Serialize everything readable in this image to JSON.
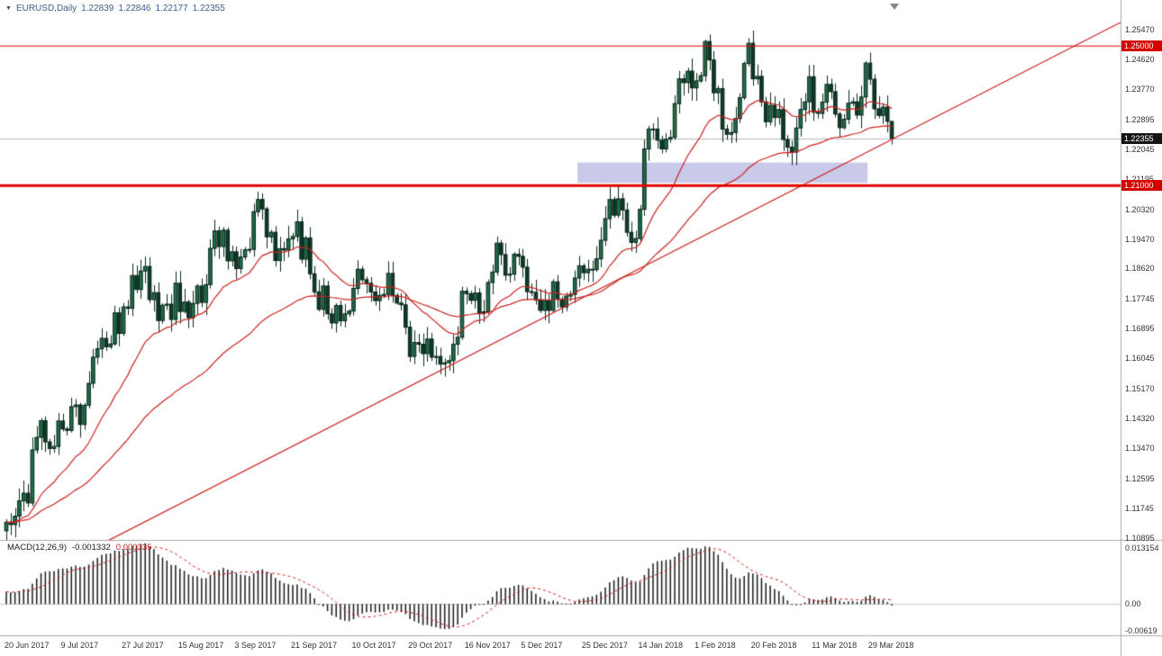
{
  "header": {
    "symbol_period": "EURUSD,Daily",
    "open": "1.22839",
    "high": "1.22846",
    "low": "1.22177",
    "close": "1.22355"
  },
  "macd_panel": {
    "label": "MACD(12,26,9)",
    "value_main": "-0.001332",
    "value_signal": "0.000335"
  },
  "colors": {
    "candle_up": "#1d6f49",
    "candle_down": "#0d3c2a",
    "candle_border": "#062015",
    "wick": "#0a2a1e",
    "line_red": "#cc2222",
    "level_red": "#e00000",
    "histogram": "#1a1a1a",
    "bid_line": "#b8b8b8",
    "highlight": "#c9c9ea",
    "separator": "#aaaaaa"
  },
  "chart_data": {
    "type": "candlestick",
    "title": "EURUSD Daily with MACD(12,26,9)",
    "symbol": "EURUSD",
    "timeframe": "Daily",
    "legend_position": "none",
    "grid": "off",
    "price_axis": {
      "max": 1.2632,
      "min": 1.1084,
      "ticks": [
        {
          "label": "1.25470",
          "value": 1.2547
        },
        {
          "label": "1.24620",
          "value": 1.2462
        },
        {
          "label": "1.23770",
          "value": 1.2377
        },
        {
          "label": "1.22895",
          "value": 1.22895
        },
        {
          "label": "1.22045",
          "value": 1.22045
        },
        {
          "label": "1.21195",
          "value": 1.21195
        },
        {
          "label": "1.20320",
          "value": 1.2032
        },
        {
          "label": "1.19470",
          "value": 1.1947
        },
        {
          "label": "1.18620",
          "value": 1.1862
        },
        {
          "label": "1.17745",
          "value": 1.17745
        },
        {
          "label": "1.16895",
          "value": 1.16895
        },
        {
          "label": "1.16045",
          "value": 1.16045
        },
        {
          "label": "1.15170",
          "value": 1.1517
        },
        {
          "label": "1.14320",
          "value": 1.1432
        },
        {
          "label": "1.13470",
          "value": 1.1347
        },
        {
          "label": "1.12595",
          "value": 1.12595
        },
        {
          "label": "1.11745",
          "value": 1.11745
        },
        {
          "label": "1.10895",
          "value": 1.10895
        }
      ]
    },
    "macd_axis": {
      "max": 0.0148,
      "min": -0.0073,
      "ticks": [
        {
          "label": "0.013154",
          "value": 0.013154
        },
        {
          "label": "0.00",
          "value": 0
        },
        {
          "label": "-0.00619",
          "value": -0.00619
        }
      ]
    },
    "x_labels": [
      {
        "index": 0,
        "label": "20 Jun 2017"
      },
      {
        "index": 13,
        "label": "9 Jul 2017"
      },
      {
        "index": 27,
        "label": "27 Jul 2017"
      },
      {
        "index": 40,
        "label": "15 Aug 2017"
      },
      {
        "index": 53,
        "label": "3 Sep 2017"
      },
      {
        "index": 66,
        "label": "21 Sep 2017"
      },
      {
        "index": 80,
        "label": "10 Oct 2017"
      },
      {
        "index": 93,
        "label": "29 Oct 2017"
      },
      {
        "index": 106,
        "label": "16 Nov 2017"
      },
      {
        "index": 119,
        "label": "5 Dec 2017"
      },
      {
        "index": 133,
        "label": "25 Dec 2017"
      },
      {
        "index": 146,
        "label": "14 Jan 2018"
      },
      {
        "index": 159,
        "label": "1 Feb 2018"
      },
      {
        "index": 172,
        "label": "20 Feb 2018"
      },
      {
        "index": 186,
        "label": "11 Mar 2018"
      },
      {
        "index": 199,
        "label": "29 Mar 2018"
      }
    ],
    "closes": [
      1.1135,
      1.1128,
      1.1152,
      1.1196,
      1.1218,
      1.119,
      1.1342,
      1.1378,
      1.1426,
      1.1365,
      1.1346,
      1.1352,
      1.1425,
      1.1402,
      1.1398,
      1.1466,
      1.1471,
      1.1415,
      1.147,
      1.1533,
      1.1608,
      1.1632,
      1.1662,
      1.1638,
      1.1646,
      1.1735,
      1.1676,
      1.1752,
      1.1748,
      1.1842,
      1.1802,
      1.1855,
      1.1868,
      1.1773,
      1.1793,
      1.1713,
      1.1757,
      1.176,
      1.1716,
      1.182,
      1.1739,
      1.1766,
      1.1721,
      1.1762,
      1.1812,
      1.1765,
      1.1816,
      1.192,
      1.197,
      1.1925,
      1.1972,
      1.1884,
      1.191,
      1.1862,
      1.1895,
      1.1916,
      1.1917,
      1.2025,
      1.206,
      1.2033,
      1.1953,
      1.1966,
      1.1885,
      1.1919,
      1.1915,
      1.1947,
      1.1954,
      1.1996,
      1.1889,
      1.195,
      1.1847,
      1.1795,
      1.1745,
      1.1812,
      1.1732,
      1.1706,
      1.1756,
      1.1712,
      1.1732,
      1.174,
      1.1805,
      1.186,
      1.183,
      1.182,
      1.1795,
      1.177,
      1.1785,
      1.1788,
      1.1848,
      1.1785,
      1.1763,
      1.1758,
      1.1694,
      1.161,
      1.165,
      1.1645,
      1.1618,
      1.166,
      1.1608,
      1.161,
      1.1588,
      1.1592,
      1.1598,
      1.1645,
      1.1665,
      1.1797,
      1.179,
      1.1771,
      1.1792,
      1.1735,
      1.1738,
      1.1822,
      1.1852,
      1.1935,
      1.1902,
      1.1843,
      1.1846,
      1.1903,
      1.1897,
      1.1866,
      1.1796,
      1.1794,
      1.1772,
      1.1742,
      1.177,
      1.1742,
      1.1824,
      1.1774,
      1.1752,
      1.1783,
      1.1788,
      1.1835,
      1.187,
      1.185,
      1.186,
      1.1859,
      1.189,
      1.1943,
      1.2005,
      1.206,
      1.2015,
      1.2062,
      1.203,
      1.1966,
      1.1937,
      1.1948,
      1.2032,
      1.2205,
      1.2262,
      1.2262,
      1.223,
      1.2205,
      1.2233,
      1.2238,
      1.2335,
      1.2406,
      1.2395,
      1.2428,
      1.238,
      1.24,
      1.2415,
      1.2513,
      1.246,
      1.2366,
      1.2378,
      1.2262,
      1.2247,
      1.2252,
      1.2292,
      1.2352,
      1.245,
      1.2508,
      1.2406,
      1.2413,
      1.234,
      1.2283,
      1.233,
      1.2295,
      1.2318,
      1.2232,
      1.221,
      1.2196,
      1.2265,
      1.2318,
      1.234,
      1.2412,
      1.231,
      1.2307,
      1.2339,
      1.239,
      1.2369,
      1.2305,
      1.2266,
      1.229,
      1.2336,
      1.234,
      1.2302,
      1.2354,
      1.2451,
      1.2405,
      1.232,
      1.2301,
      1.2325,
      1.2284,
      1.22355
    ],
    "last_candle": {
      "open": 1.22839,
      "high": 1.22846,
      "low": 1.22177,
      "close": 1.22355
    },
    "levels": [
      {
        "label": "1.25000",
        "value": 1.25,
        "style": "thin"
      },
      {
        "label": "1.21000",
        "value": 1.21,
        "style": "thick"
      }
    ],
    "bid": {
      "label": "1.22355",
      "value": 1.22355
    },
    "highlight": {
      "start_index": 132,
      "end_index": 198,
      "price_top": 1.2166,
      "price_bottom": 1.2108
    },
    "trendline": {
      "start_index": 20,
      "start_price": 1.106,
      "end_index": 258,
      "end_price": 1.2576
    },
    "moving_averages": [
      {
        "period": 20,
        "type": "ema"
      },
      {
        "period": 55,
        "type": "ema"
      }
    ],
    "macd": {
      "fast": 12,
      "slow": 26,
      "signal_period": 9
    }
  }
}
